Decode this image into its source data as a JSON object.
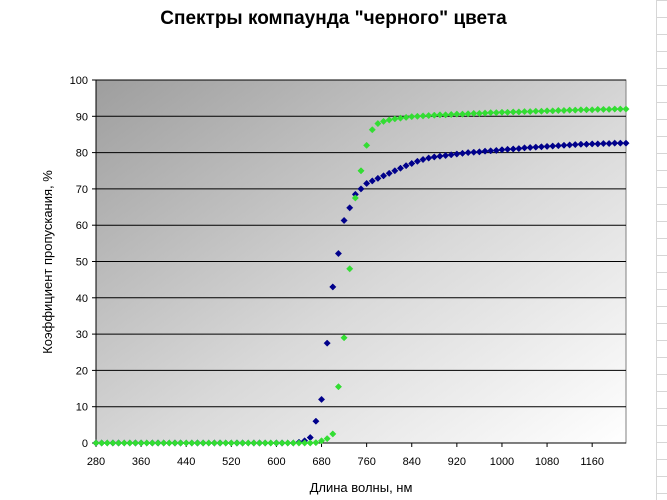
{
  "chart_data": {
    "type": "scatter",
    "title": "Спектры компаунда \"черного\" цвета",
    "xlabel": "Длина волны, нм",
    "ylabel": "Коэффициент пропускания, %",
    "xlim": [
      280,
      1220
    ],
    "ylim": [
      0,
      100
    ],
    "xticks": [
      280,
      360,
      440,
      520,
      600,
      680,
      760,
      840,
      920,
      1000,
      1080,
      1160
    ],
    "yticks": [
      0,
      10,
      20,
      30,
      40,
      50,
      60,
      70,
      80,
      90,
      100
    ],
    "grid": "horizontal",
    "legend": "none",
    "x": [
      280,
      290,
      300,
      310,
      320,
      330,
      340,
      350,
      360,
      370,
      380,
      390,
      400,
      410,
      420,
      430,
      440,
      450,
      460,
      470,
      480,
      490,
      500,
      510,
      520,
      530,
      540,
      550,
      560,
      570,
      580,
      590,
      600,
      610,
      620,
      630,
      640,
      650,
      660,
      670,
      680,
      690,
      700,
      710,
      720,
      730,
      740,
      750,
      760,
      770,
      780,
      790,
      800,
      810,
      820,
      830,
      840,
      850,
      860,
      870,
      880,
      890,
      900,
      910,
      920,
      930,
      940,
      950,
      960,
      970,
      980,
      990,
      1000,
      1010,
      1020,
      1030,
      1040,
      1050,
      1060,
      1070,
      1080,
      1090,
      1100,
      1110,
      1120,
      1130,
      1140,
      1150,
      1160,
      1170,
      1180,
      1190,
      1200,
      1210,
      1220
    ],
    "series": [
      {
        "color": "#00008B",
        "values": [
          0,
          0,
          0,
          0,
          0,
          0,
          0,
          0,
          0,
          0,
          0,
          0,
          0,
          0,
          0,
          0,
          0,
          0,
          0,
          0,
          0,
          0,
          0,
          0,
          0,
          0,
          0,
          0,
          0,
          0,
          0,
          0,
          0,
          0,
          0,
          0,
          0.2,
          0.6,
          1.5,
          6,
          12,
          27.5,
          43,
          52.2,
          61.3,
          64.8,
          68.5,
          70,
          71.5,
          72.2,
          72.9,
          73.6,
          74.3,
          75,
          75.7,
          76.4,
          77,
          77.6,
          78.1,
          78.5,
          78.8,
          79,
          79.2,
          79.4,
          79.6,
          79.8,
          80,
          80.1,
          80.2,
          80.4,
          80.5,
          80.6,
          80.8,
          80.9,
          81,
          81.1,
          81.3,
          81.4,
          81.5,
          81.6,
          81.7,
          81.8,
          81.9,
          82,
          82.1,
          82.2,
          82.3,
          82.3,
          82.4,
          82.4,
          82.5,
          82.5,
          82.6,
          82.6,
          82.6
        ]
      },
      {
        "color": "#33DD33",
        "values": [
          0,
          0,
          0,
          0,
          0,
          0,
          0,
          0,
          0,
          0,
          0,
          0,
          0,
          0,
          0,
          0,
          0,
          0,
          0,
          0,
          0,
          0,
          0,
          0,
          0,
          0,
          0,
          0,
          0,
          0,
          0,
          0,
          0,
          0,
          0,
          0,
          0,
          0,
          0,
          0.1,
          0.6,
          1.2,
          2.5,
          15.5,
          29,
          48,
          67.5,
          75,
          82,
          86.3,
          88,
          88.6,
          89,
          89.3,
          89.5,
          89.7,
          89.9,
          90,
          90.1,
          90.2,
          90.3,
          90.4,
          90.4,
          90.5,
          90.6,
          90.6,
          90.7,
          90.8,
          90.8,
          90.9,
          91,
          91,
          91.1,
          91.1,
          91.2,
          91.2,
          91.3,
          91.3,
          91.4,
          91.4,
          91.5,
          91.5,
          91.6,
          91.6,
          91.7,
          91.7,
          91.8,
          91.8,
          91.8,
          91.9,
          91.9,
          91.9,
          92,
          92,
          92
        ]
      }
    ]
  }
}
